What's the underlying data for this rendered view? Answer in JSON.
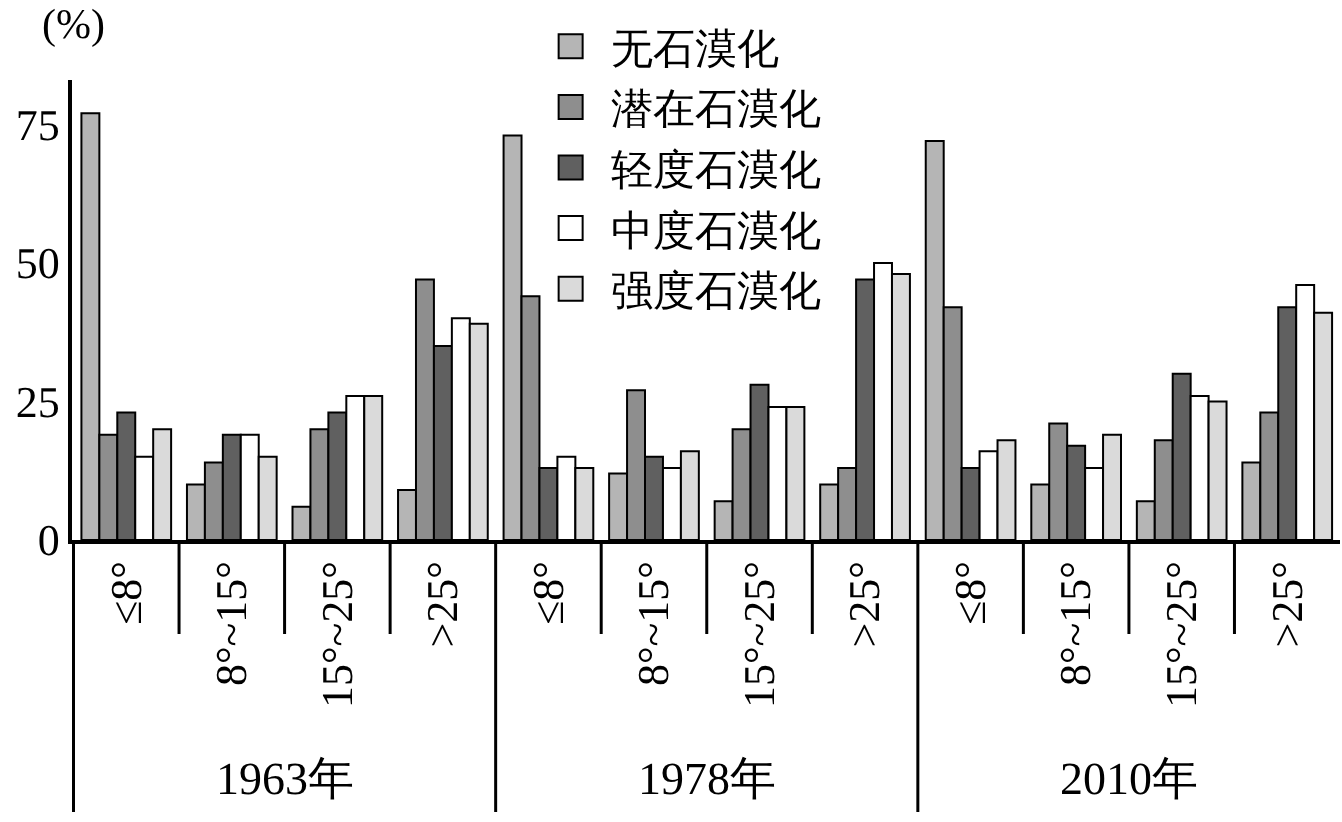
{
  "chart_data": {
    "type": "bar",
    "categories": [
      "≤8°",
      "8°~15°",
      "15°~25°",
      ">25°",
      "≤8°",
      "8°~15°",
      "15°~25°",
      ">25°",
      "≤8°",
      "8°~15°",
      "15°~25°",
      ">25°"
    ],
    "ylabel": "(%)",
    "ylim": [
      0,
      83
    ],
    "yticks": [
      0,
      25,
      50,
      75
    ],
    "legend": "top",
    "annotations": [
      "1963年",
      "1978年",
      "2010年"
    ],
    "series": [
      {
        "name": "无石漠化",
        "color": "#b5b5b5",
        "values": [
          77,
          10,
          6,
          9,
          73,
          12,
          7,
          10,
          72,
          10,
          7,
          14
        ]
      },
      {
        "name": "潜在石漠化",
        "color": "#8e8e8e",
        "values": [
          19,
          14,
          20,
          47,
          44,
          27,
          20,
          13,
          42,
          21,
          18,
          23
        ]
      },
      {
        "name": "轻度石漠化",
        "color": "#606060",
        "values": [
          23,
          19,
          23,
          35,
          13,
          15,
          28,
          47,
          13,
          17,
          30,
          42
        ]
      },
      {
        "name": "中度石漠化",
        "color": "#ffffff",
        "values": [
          15,
          19,
          26,
          40,
          15,
          13,
          24,
          50,
          16,
          13,
          26,
          46
        ]
      },
      {
        "name": "强度石漠化",
        "color": "#dadada",
        "values": [
          20,
          15,
          26,
          39,
          13,
          16,
          24,
          48,
          18,
          19,
          25,
          41
        ]
      }
    ]
  }
}
